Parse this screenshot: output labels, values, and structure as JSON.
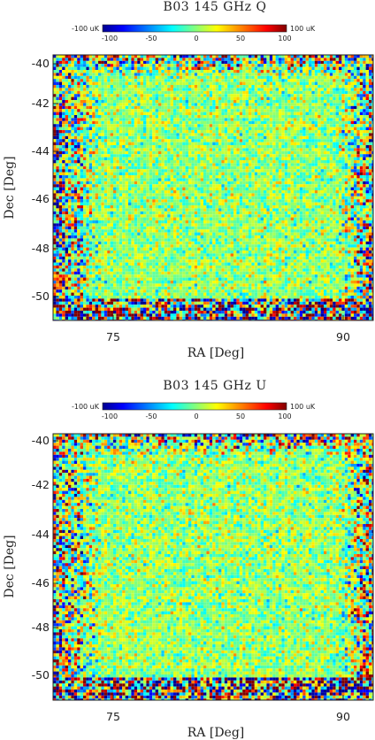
{
  "chart_data": [
    {
      "type": "heatmap",
      "title": "B03 145 GHz Q",
      "xlabel": "RA [Deg]",
      "ylabel": "Dec [Deg]",
      "x_ticks": [
        "75",
        "90"
      ],
      "y_ticks": [
        "-40",
        "-42",
        "-44",
        "-46",
        "-48",
        "-50"
      ],
      "xlim": [
        70.7,
        91.6
      ],
      "ylim": [
        -51,
        -39.6
      ],
      "colorbar": {
        "min_label": "-100 uK",
        "max_label": "100 uK",
        "ticks": [
          "-100",
          "-50",
          "0",
          "50",
          "100"
        ],
        "range": [
          -100,
          100
        ],
        "colormap": [
          "#00008f",
          "#0000ff",
          "#00ffff",
          "#ffff00",
          "#ff0000",
          "#800000"
        ]
      },
      "grid": false
    },
    {
      "type": "heatmap",
      "title": "B03 145 GHz U",
      "xlabel": "RA [Deg]",
      "ylabel": "Dec [Deg]",
      "x_ticks": [
        "75",
        "90"
      ],
      "y_ticks": [
        "-40",
        "-42",
        "-44",
        "-46",
        "-48",
        "-50"
      ],
      "xlim": [
        70.7,
        91.6
      ],
      "ylim": [
        -51,
        -39.6
      ],
      "colorbar": {
        "min_label": "-100 uK",
        "max_label": "100 uK",
        "ticks": [
          "-100",
          "-50",
          "0",
          "50",
          "100"
        ],
        "range": [
          -100,
          100
        ],
        "colormap": [
          "#00008f",
          "#0000ff",
          "#00ffff",
          "#ffff00",
          "#ff0000",
          "#800000"
        ]
      },
      "grid": false
    }
  ]
}
